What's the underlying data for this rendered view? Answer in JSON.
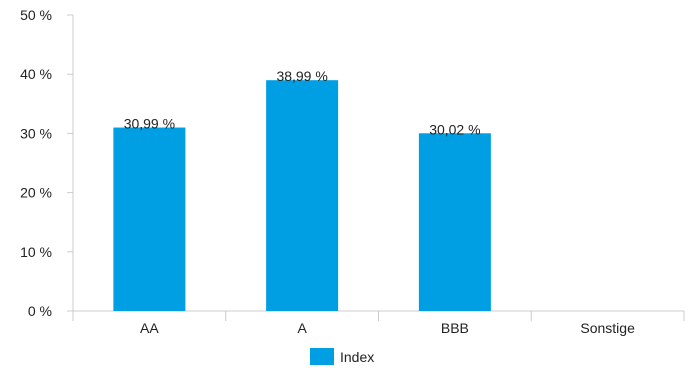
{
  "chart_data": {
    "type": "bar",
    "categories": [
      "AA",
      "A",
      "BBB",
      "Sonstige"
    ],
    "series": [
      {
        "name": "Index",
        "values": [
          30.99,
          38.99,
          30.02,
          null
        ],
        "labels": [
          "30,99 %",
          "38,99 %",
          "30,02 %",
          null
        ]
      }
    ],
    "yticks": [
      {
        "value": 0,
        "label": "0 %"
      },
      {
        "value": 10,
        "label": "10 %"
      },
      {
        "value": 20,
        "label": "20 %"
      },
      {
        "value": 30,
        "label": "30 %"
      },
      {
        "value": 40,
        "label": "40 %"
      },
      {
        "value": 50,
        "label": "50 %"
      }
    ],
    "ylim": [
      0,
      50
    ],
    "grid": false,
    "legend_position": "bottom-center",
    "bar_color": "#009fe3",
    "axis_color": "#cccccc"
  }
}
